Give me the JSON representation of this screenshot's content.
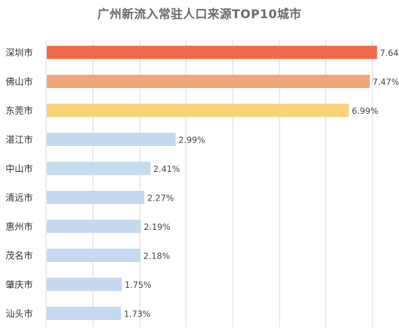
{
  "chart_data": {
    "type": "bar",
    "orientation": "horizontal",
    "title": "广州新流入常驻人口来源TOP10城市",
    "categories": [
      "深圳市",
      "佛山市",
      "东莞市",
      "湛江市",
      "中山市",
      "清远市",
      "惠州市",
      "茂名市",
      "肇庆市",
      "汕头市"
    ],
    "values": [
      7.64,
      7.47,
      6.99,
      2.99,
      2.41,
      2.27,
      2.19,
      2.18,
      1.75,
      1.73
    ],
    "value_labels": [
      "7.64%",
      "7.47%",
      "6.99%",
      "2.99%",
      "2.41%",
      "2.27%",
      "2.19%",
      "2.18%",
      "1.75%",
      "1.73%"
    ],
    "bar_colors": [
      "#ee6a4c",
      "#f0a77a",
      "#f8d37b",
      "#c5d9ef",
      "#c5d9ef",
      "#c5d9ef",
      "#c5d9ef",
      "#c5d9ef",
      "#c5d9ef",
      "#c5d9ef"
    ],
    "xlim": [
      0,
      8
    ],
    "grid": true,
    "xlabel": "",
    "ylabel": ""
  }
}
